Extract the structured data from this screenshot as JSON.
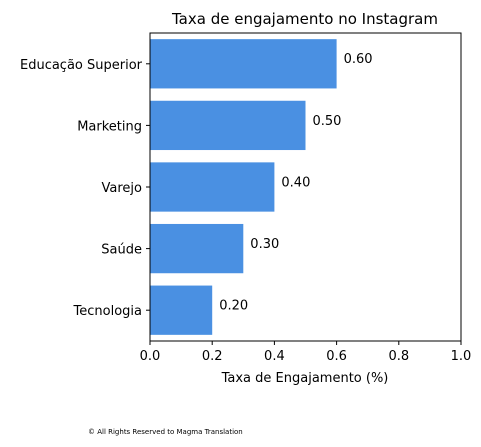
{
  "chart_data": {
    "type": "bar",
    "orientation": "horizontal",
    "title": "Taxa de engajamento no Instagram",
    "xlabel": "Taxa de Engajamento (%)",
    "ylabel": "",
    "categories": [
      "Educação Superior",
      "Marketing",
      "Varejo",
      "Saúde",
      "Tecnologia"
    ],
    "values": [
      0.6,
      0.5,
      0.4,
      0.3,
      0.2
    ],
    "value_labels": [
      "0.60",
      "0.50",
      "0.40",
      "0.30",
      "0.20"
    ],
    "xlim": [
      0,
      1.0
    ],
    "x_ticks": [
      0.0,
      0.2,
      0.4,
      0.6,
      0.8,
      1.0
    ],
    "x_tick_labels": [
      "0.0",
      "0.2",
      "0.4",
      "0.6",
      "0.8",
      "1.0"
    ],
    "grid": false,
    "bar_color": "#4a90e2"
  },
  "footer": {
    "copyright": "© All Rights Reserved to Magma Translation"
  }
}
